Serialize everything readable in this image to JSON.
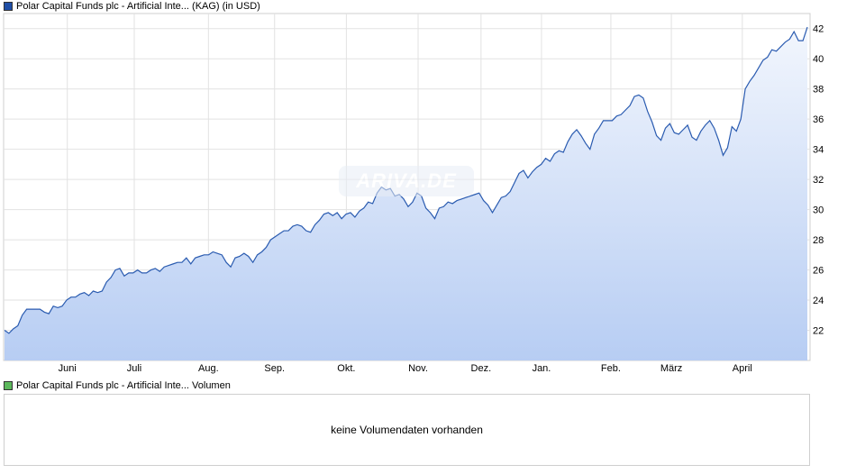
{
  "legend": {
    "price_label": "Polar Capital Funds plc - Artificial Inte... (KAG)  (in USD)",
    "price_color": "#1f4ea6",
    "volume_label": "Polar Capital Funds plc - Artificial Inte... Volumen",
    "volume_color": "#5cb85c"
  },
  "watermark": "ARIVA.DE",
  "volume": {
    "message": "keine Volumendaten vorhanden"
  },
  "chart_data": {
    "type": "area",
    "ylim": [
      20,
      43
    ],
    "grid": true,
    "line_color": "#2a5bb0",
    "fill_top": "#f2f6fd",
    "fill_bottom": "#b7cdf3",
    "y_ticks": [
      22,
      24,
      26,
      28,
      30,
      32,
      34,
      36,
      38,
      40,
      42
    ],
    "x_labels": [
      {
        "label": "Juni",
        "t": 0.079
      },
      {
        "label": "Juli",
        "t": 0.162
      },
      {
        "label": "Aug.",
        "t": 0.254
      },
      {
        "label": "Sep.",
        "t": 0.336
      },
      {
        "label": "Okt.",
        "t": 0.425
      },
      {
        "label": "Nov.",
        "t": 0.514
      },
      {
        "label": "Dez.",
        "t": 0.592
      },
      {
        "label": "Jan.",
        "t": 0.667
      },
      {
        "label": "Feb.",
        "t": 0.753
      },
      {
        "label": "März",
        "t": 0.828
      },
      {
        "label": "April",
        "t": 0.916
      }
    ],
    "series": [
      {
        "values": [
          [
            0.0,
            22.0
          ],
          [
            0.006,
            21.8
          ],
          [
            0.012,
            22.1
          ],
          [
            0.018,
            22.3
          ],
          [
            0.024,
            23.0
          ],
          [
            0.03,
            23.4
          ],
          [
            0.036,
            23.4
          ],
          [
            0.042,
            23.4
          ],
          [
            0.048,
            23.4
          ],
          [
            0.054,
            23.2
          ],
          [
            0.06,
            23.1
          ],
          [
            0.066,
            23.6
          ],
          [
            0.072,
            23.5
          ],
          [
            0.078,
            23.6
          ],
          [
            0.084,
            24.0
          ],
          [
            0.09,
            24.2
          ],
          [
            0.096,
            24.2
          ],
          [
            0.102,
            24.4
          ],
          [
            0.108,
            24.5
          ],
          [
            0.114,
            24.3
          ],
          [
            0.12,
            24.6
          ],
          [
            0.126,
            24.5
          ],
          [
            0.132,
            24.6
          ],
          [
            0.138,
            25.2
          ],
          [
            0.144,
            25.5
          ],
          [
            0.15,
            26.0
          ],
          [
            0.156,
            26.1
          ],
          [
            0.162,
            25.6
          ],
          [
            0.168,
            25.8
          ],
          [
            0.174,
            25.8
          ],
          [
            0.18,
            26.0
          ],
          [
            0.186,
            25.8
          ],
          [
            0.192,
            25.8
          ],
          [
            0.198,
            26.0
          ],
          [
            0.204,
            26.1
          ],
          [
            0.21,
            25.9
          ],
          [
            0.216,
            26.2
          ],
          [
            0.222,
            26.3
          ],
          [
            0.228,
            26.4
          ],
          [
            0.234,
            26.5
          ],
          [
            0.24,
            26.5
          ],
          [
            0.246,
            26.8
          ],
          [
            0.252,
            26.4
          ],
          [
            0.258,
            26.8
          ],
          [
            0.264,
            26.9
          ],
          [
            0.27,
            27.0
          ],
          [
            0.276,
            27.0
          ],
          [
            0.282,
            27.2
          ],
          [
            0.288,
            27.1
          ],
          [
            0.294,
            27.0
          ],
          [
            0.3,
            26.5
          ],
          [
            0.306,
            26.2
          ],
          [
            0.312,
            26.8
          ],
          [
            0.318,
            26.9
          ],
          [
            0.324,
            27.1
          ],
          [
            0.33,
            26.9
          ],
          [
            0.336,
            26.5
          ],
          [
            0.342,
            27.0
          ],
          [
            0.348,
            27.2
          ],
          [
            0.354,
            27.5
          ],
          [
            0.36,
            28.0
          ],
          [
            0.366,
            28.2
          ],
          [
            0.372,
            28.4
          ],
          [
            0.378,
            28.6
          ],
          [
            0.384,
            28.6
          ],
          [
            0.39,
            28.9
          ],
          [
            0.396,
            29.0
          ],
          [
            0.402,
            28.9
          ],
          [
            0.408,
            28.6
          ],
          [
            0.414,
            28.5
          ],
          [
            0.42,
            29.0
          ],
          [
            0.426,
            29.3
          ],
          [
            0.432,
            29.7
          ],
          [
            0.438,
            29.8
          ],
          [
            0.444,
            29.6
          ],
          [
            0.45,
            29.8
          ],
          [
            0.456,
            29.4
          ],
          [
            0.462,
            29.7
          ],
          [
            0.468,
            29.8
          ],
          [
            0.474,
            29.5
          ],
          [
            0.48,
            29.9
          ],
          [
            0.486,
            30.1
          ],
          [
            0.492,
            30.5
          ],
          [
            0.498,
            30.4
          ],
          [
            0.504,
            31.1
          ],
          [
            0.51,
            31.5
          ],
          [
            0.516,
            31.3
          ],
          [
            0.522,
            31.4
          ],
          [
            0.528,
            30.9
          ],
          [
            0.534,
            31.0
          ],
          [
            0.54,
            30.7
          ],
          [
            0.546,
            30.2
          ],
          [
            0.552,
            30.5
          ],
          [
            0.558,
            31.1
          ],
          [
            0.564,
            30.9
          ],
          [
            0.57,
            30.1
          ],
          [
            0.576,
            29.8
          ],
          [
            0.582,
            29.4
          ],
          [
            0.588,
            30.1
          ],
          [
            0.594,
            30.2
          ],
          [
            0.6,
            30.5
          ],
          [
            0.606,
            30.4
          ],
          [
            0.612,
            30.6
          ],
          [
            0.618,
            30.7
          ],
          [
            0.624,
            30.8
          ],
          [
            0.63,
            30.9
          ],
          [
            0.636,
            31.0
          ],
          [
            0.642,
            31.1
          ],
          [
            0.648,
            30.6
          ],
          [
            0.654,
            30.3
          ],
          [
            0.66,
            29.8
          ],
          [
            0.666,
            30.3
          ],
          [
            0.672,
            30.8
          ],
          [
            0.678,
            30.9
          ],
          [
            0.684,
            31.2
          ],
          [
            0.69,
            31.8
          ],
          [
            0.696,
            32.4
          ],
          [
            0.702,
            32.6
          ],
          [
            0.708,
            32.1
          ],
          [
            0.714,
            32.5
          ],
          [
            0.72,
            32.8
          ],
          [
            0.726,
            33.0
          ],
          [
            0.732,
            33.4
          ],
          [
            0.738,
            33.2
          ],
          [
            0.744,
            33.7
          ],
          [
            0.75,
            33.9
          ],
          [
            0.756,
            33.8
          ],
          [
            0.762,
            34.5
          ],
          [
            0.768,
            35.0
          ],
          [
            0.774,
            35.3
          ],
          [
            0.78,
            34.9
          ],
          [
            0.786,
            34.4
          ],
          [
            0.792,
            34.0
          ],
          [
            0.798,
            35.0
          ],
          [
            0.804,
            35.4
          ],
          [
            0.81,
            35.9
          ],
          [
            0.816,
            35.9
          ],
          [
            0.822,
            35.9
          ],
          [
            0.828,
            36.2
          ],
          [
            0.834,
            36.3
          ],
          [
            0.84,
            36.6
          ],
          [
            0.846,
            36.9
          ],
          [
            0.852,
            37.5
          ],
          [
            0.858,
            37.6
          ],
          [
            0.864,
            37.4
          ],
          [
            0.87,
            36.5
          ],
          [
            0.876,
            35.8
          ],
          [
            0.882,
            34.9
          ],
          [
            0.888,
            34.6
          ],
          [
            0.894,
            35.4
          ],
          [
            0.9,
            35.7
          ],
          [
            0.906,
            35.1
          ],
          [
            0.912,
            35.0
          ],
          [
            0.918,
            35.3
          ],
          [
            0.924,
            35.6
          ],
          [
            0.93,
            34.8
          ],
          [
            0.936,
            34.6
          ],
          [
            0.942,
            35.2
          ],
          [
            0.948,
            35.6
          ],
          [
            0.954,
            35.9
          ],
          [
            0.96,
            35.4
          ],
          [
            0.966,
            34.6
          ],
          [
            0.972,
            33.6
          ],
          [
            0.978,
            34.1
          ],
          [
            0.984,
            35.5
          ],
          [
            0.99,
            35.2
          ],
          [
            0.996,
            36.0
          ],
          [
            1.002,
            38.0
          ],
          [
            1.008,
            38.5
          ],
          [
            1.014,
            38.9
          ],
          [
            1.02,
            39.4
          ],
          [
            1.026,
            39.9
          ],
          [
            1.032,
            40.1
          ],
          [
            1.038,
            40.6
          ],
          [
            1.044,
            40.5
          ],
          [
            1.05,
            40.8
          ],
          [
            1.056,
            41.1
          ],
          [
            1.062,
            41.3
          ],
          [
            1.068,
            41.8
          ],
          [
            1.074,
            41.2
          ],
          [
            1.08,
            41.2
          ],
          [
            1.086,
            42.1
          ]
        ]
      }
    ]
  }
}
